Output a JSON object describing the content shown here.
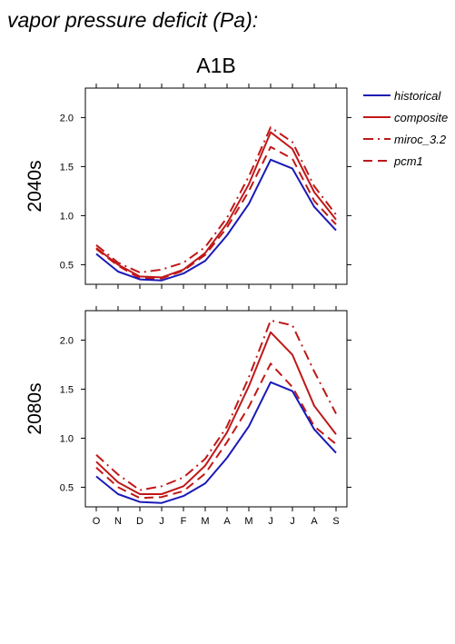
{
  "title": "vapor pressure deficit (Pa):",
  "scenario": "A1B",
  "colors": {
    "historical": "#1a1ab8",
    "projection": "#c01818",
    "axis": "#000000"
  },
  "legend": [
    {
      "label": "historical",
      "color": "#1a1ab8",
      "dash": "solid"
    },
    {
      "label": "composite",
      "color": "#c01818",
      "dash": "solid"
    },
    {
      "label": "miroc_3.2",
      "color": "#c01818",
      "dash": "dashdot"
    },
    {
      "label": "pcm1",
      "color": "#c01818",
      "dash": "dash"
    }
  ],
  "chart_data": [
    {
      "type": "line",
      "panel_label": "2040s",
      "categories": [
        "O",
        "N",
        "D",
        "J",
        "F",
        "M",
        "A",
        "M",
        "J",
        "J",
        "A",
        "S"
      ],
      "ylim": [
        0.3,
        2.3
      ],
      "yticks": [
        0.5,
        1.0,
        1.5,
        2.0
      ],
      "ytick_labels": [
        "0.5",
        "1.0",
        "1.5",
        "2.0"
      ],
      "series": [
        {
          "name": "historical",
          "color": "#1a1ab8",
          "dash": "solid",
          "values": [
            0.61,
            0.43,
            0.35,
            0.34,
            0.41,
            0.54,
            0.8,
            1.12,
            1.57,
            1.48,
            1.09,
            0.85
          ]
        },
        {
          "name": "composite",
          "color": "#c01818",
          "dash": "solid",
          "values": [
            0.67,
            0.5,
            0.38,
            0.37,
            0.45,
            0.62,
            0.92,
            1.32,
            1.85,
            1.68,
            1.24,
            0.96
          ]
        },
        {
          "name": "miroc_3.2",
          "color": "#c01818",
          "dash": "dashdot",
          "values": [
            0.7,
            0.52,
            0.42,
            0.45,
            0.52,
            0.68,
            0.98,
            1.4,
            1.9,
            1.75,
            1.3,
            1.01
          ]
        },
        {
          "name": "pcm1",
          "color": "#c01818",
          "dash": "dash",
          "values": [
            0.66,
            0.49,
            0.36,
            0.36,
            0.44,
            0.6,
            0.88,
            1.25,
            1.7,
            1.58,
            1.15,
            0.91
          ]
        }
      ]
    },
    {
      "type": "line",
      "panel_label": "2080s",
      "categories": [
        "O",
        "N",
        "D",
        "J",
        "F",
        "M",
        "A",
        "M",
        "J",
        "J",
        "A",
        "S"
      ],
      "ylim": [
        0.3,
        2.3
      ],
      "yticks": [
        0.5,
        1.0,
        1.5,
        2.0
      ],
      "ytick_labels": [
        "0.5",
        "1.0",
        "1.5",
        "2.0"
      ],
      "series": [
        {
          "name": "historical",
          "color": "#1a1ab8",
          "dash": "solid",
          "values": [
            0.61,
            0.43,
            0.35,
            0.34,
            0.41,
            0.54,
            0.8,
            1.12,
            1.57,
            1.48,
            1.09,
            0.85
          ]
        },
        {
          "name": "composite",
          "color": "#c01818",
          "dash": "solid",
          "values": [
            0.76,
            0.55,
            0.43,
            0.43,
            0.51,
            0.72,
            1.06,
            1.53,
            2.08,
            1.85,
            1.33,
            1.04
          ]
        },
        {
          "name": "miroc_3.2",
          "color": "#c01818",
          "dash": "dashdot",
          "values": [
            0.83,
            0.63,
            0.47,
            0.51,
            0.6,
            0.79,
            1.12,
            1.62,
            2.2,
            2.15,
            1.68,
            1.25
          ]
        },
        {
          "name": "pcm1",
          "color": "#c01818",
          "dash": "dash",
          "values": [
            0.7,
            0.5,
            0.39,
            0.4,
            0.46,
            0.64,
            0.96,
            1.32,
            1.76,
            1.52,
            1.12,
            0.94
          ]
        }
      ]
    }
  ]
}
